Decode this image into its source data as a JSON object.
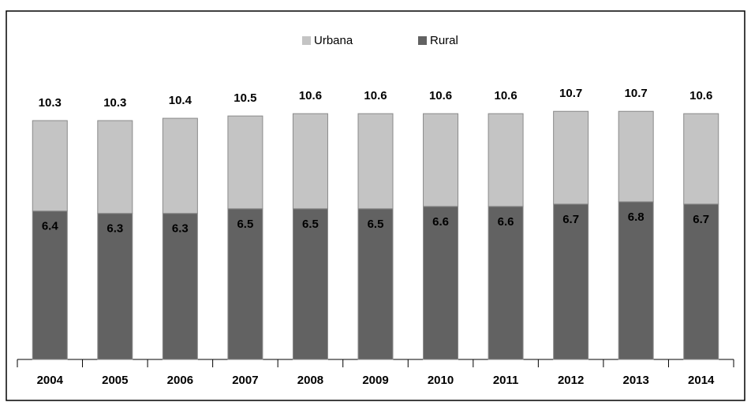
{
  "chart_data": {
    "type": "stacked_bar",
    "categories": [
      "2004",
      "2005",
      "2006",
      "2007",
      "2008",
      "2009",
      "2010",
      "2011",
      "2012",
      "2013",
      "2014"
    ],
    "series": [
      {
        "name": "Rural",
        "color": "#626262",
        "values": [
          6.4,
          6.3,
          6.3,
          6.5,
          6.5,
          6.5,
          6.6,
          6.6,
          6.7,
          6.8,
          6.7
        ]
      },
      {
        "name": "Urbana",
        "color": "#c4c4c4",
        "values": [
          3.9,
          4.0,
          4.1,
          4.0,
          4.1,
          4.1,
          4.0,
          4.0,
          4.0,
          3.9,
          3.9
        ]
      }
    ],
    "totals": [
      10.3,
      10.3,
      10.4,
      10.5,
      10.6,
      10.6,
      10.6,
      10.6,
      10.7,
      10.7,
      10.6
    ],
    "ylim": [
      0,
      12
    ],
    "legend": "top"
  }
}
